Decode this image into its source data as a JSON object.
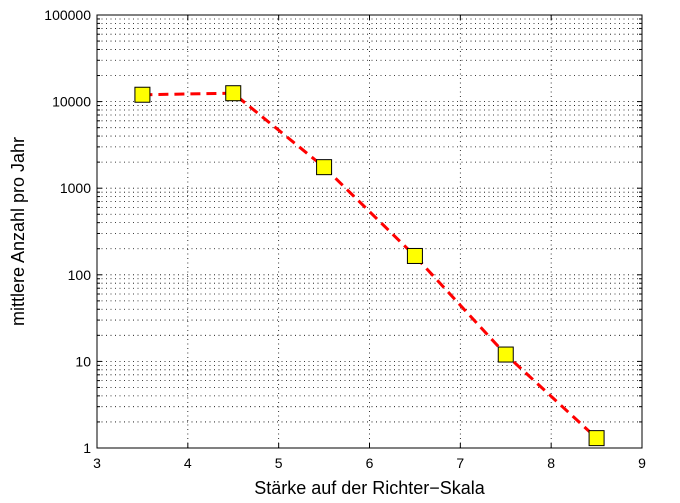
{
  "chart_data": {
    "type": "line",
    "title": "",
    "xlabel": "Stärke auf der Richter−Skala",
    "ylabel": "mittlere Anzahl pro Jahr",
    "xlim": [
      3,
      9
    ],
    "ylim": [
      1,
      100000
    ],
    "yscale": "log",
    "grid": true,
    "x_ticks": [
      3,
      4,
      5,
      6,
      7,
      8,
      9
    ],
    "x_tick_labels": [
      "3",
      "4",
      "5",
      "6",
      "7",
      "8",
      "9"
    ],
    "y_ticks": [
      1,
      10,
      100,
      1000,
      10000,
      100000
    ],
    "y_tick_labels": [
      "1",
      "10",
      "100",
      "1000",
      "10000",
      "100000"
    ],
    "series": [
      {
        "x": [
          3.5,
          4.5,
          5.5,
          6.5,
          7.5,
          8.5
        ],
        "y": [
          12000,
          12500,
          1750,
          165,
          12,
          1.3
        ],
        "line_color": "#ff0000",
        "line_style": "dashed",
        "marker": "square",
        "marker_fill": "#ffff00",
        "marker_edge": "#000000"
      }
    ]
  }
}
